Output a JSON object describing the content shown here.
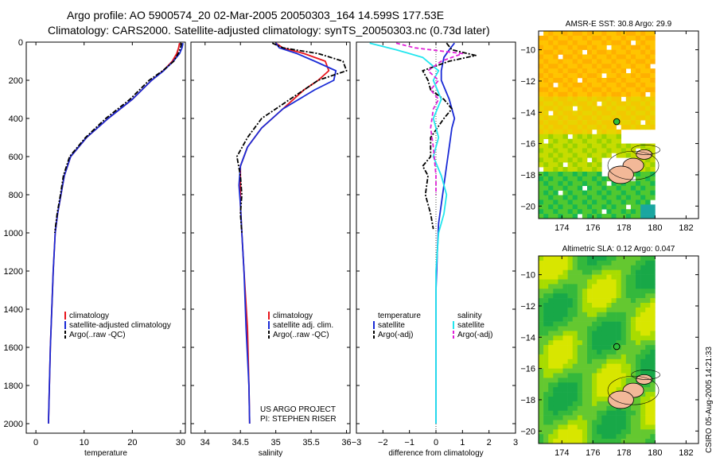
{
  "header": {
    "title_line1": "Argo profile: AO 5900574_20 02-Mar-2005 20050303_164 14.599S 177.53E",
    "title_line2": "Climatology: CARS2000. Satellite-adjusted climatology: synTS_20050303.nc (0.73d later)"
  },
  "credits": {
    "line1": "US ARGO PROJECT",
    "line2": "PI: STEPHEN RISER"
  },
  "timestamp": "CSIRO 05-Aug-2005 14:21:33",
  "colors": {
    "red": "#e8141b",
    "blue": "#1a2bd6",
    "black": "#000000",
    "cyan": "#22e6ee",
    "magenta": "#e020d8"
  },
  "chart_data": [
    {
      "type": "line",
      "xlabel": "temperature",
      "ylabel": "",
      "xlim": [
        -2,
        31
      ],
      "ylim": [
        2050,
        0
      ],
      "xticks": [
        0,
        10,
        20,
        30
      ],
      "yticks": [
        0,
        200,
        400,
        600,
        800,
        1000,
        1200,
        1400,
        1600,
        1800,
        2000
      ],
      "legend_position": "lower-middle",
      "legend": [
        {
          "label": "climatology",
          "color": "red"
        },
        {
          "label": "satellite-adjusted climatology",
          "color": "blue"
        },
        {
          "label": "Argo(..raw -QC)",
          "color": "black"
        }
      ],
      "series": [
        {
          "name": "climatology",
          "color": "red",
          "dash": "solid",
          "points": [
            [
              29.8,
              5
            ],
            [
              29.6,
              30
            ],
            [
              29.2,
              60
            ],
            [
              28.3,
              100
            ],
            [
              26.4,
              150
            ],
            [
              24.0,
              200
            ],
            [
              20.0,
              300
            ],
            [
              15.0,
              400
            ],
            [
              10.5,
              500
            ],
            [
              7.2,
              600
            ],
            [
              5.9,
              700
            ],
            [
              5.2,
              800
            ],
            [
              4.5,
              900
            ],
            [
              4.0,
              1000
            ],
            [
              3.6,
              1200
            ],
            [
              3.3,
              1400
            ],
            [
              3.0,
              1600
            ],
            [
              2.8,
              1800
            ],
            [
              2.6,
              2000
            ]
          ]
        },
        {
          "name": "satellite-adjusted climatology",
          "color": "blue",
          "dash": "solid",
          "points": [
            [
              30.5,
              5
            ],
            [
              30.3,
              30
            ],
            [
              29.8,
              60
            ],
            [
              28.5,
              100
            ],
            [
              26.5,
              150
            ],
            [
              24.0,
              200
            ],
            [
              20.0,
              300
            ],
            [
              15.0,
              400
            ],
            [
              10.5,
              500
            ],
            [
              7.2,
              600
            ],
            [
              5.9,
              700
            ],
            [
              5.2,
              800
            ],
            [
              4.5,
              900
            ],
            [
              4.0,
              1000
            ],
            [
              3.6,
              1200
            ],
            [
              3.3,
              1400
            ],
            [
              3.0,
              1600
            ],
            [
              2.8,
              1800
            ],
            [
              2.6,
              2000
            ]
          ]
        },
        {
          "name": "Argo(..raw -QC)",
          "color": "black",
          "dash": "dashdot",
          "points": [
            [
              30.2,
              5
            ],
            [
              30.0,
              30
            ],
            [
              29.5,
              60
            ],
            [
              28.6,
              100
            ],
            [
              26.3,
              150
            ],
            [
              23.5,
              200
            ],
            [
              19.5,
              300
            ],
            [
              14.5,
              400
            ],
            [
              10.3,
              500
            ],
            [
              7.0,
              600
            ],
            [
              5.7,
              700
            ],
            [
              5.1,
              800
            ],
            [
              4.4,
              900
            ],
            [
              3.9,
              1000
            ]
          ]
        }
      ]
    },
    {
      "type": "line",
      "xlabel": "salinity",
      "ylabel": "",
      "xlim": [
        33.8,
        36.05
      ],
      "ylim": [
        2050,
        0
      ],
      "xticks": [
        34,
        34.5,
        35,
        35.5,
        36
      ],
      "legend_position": "lower-middle",
      "legend": [
        {
          "label": "climatology",
          "color": "red"
        },
        {
          "label": "satellite adj. clim.",
          "color": "blue"
        },
        {
          "label": "Argo(..raw -QC)",
          "color": "black"
        }
      ],
      "series": [
        {
          "name": "climatology",
          "color": "red",
          "dash": "solid",
          "points": [
            [
              35.0,
              5
            ],
            [
              35.1,
              30
            ],
            [
              35.4,
              60
            ],
            [
              35.7,
              100
            ],
            [
              35.75,
              150
            ],
            [
              35.6,
              200
            ],
            [
              35.4,
              250
            ],
            [
              35.1,
              350
            ],
            [
              34.8,
              450
            ],
            [
              34.6,
              550
            ],
            [
              34.5,
              650
            ],
            [
              34.5,
              750
            ],
            [
              34.5,
              850
            ],
            [
              34.52,
              1000
            ],
            [
              34.55,
              1200
            ],
            [
              34.6,
              1500
            ],
            [
              34.62,
              1800
            ],
            [
              34.63,
              2000
            ]
          ]
        },
        {
          "name": "satellite adj. clim.",
          "color": "blue",
          "dash": "solid",
          "points": [
            [
              35.0,
              5
            ],
            [
              35.05,
              30
            ],
            [
              35.3,
              60
            ],
            [
              35.55,
              100
            ],
            [
              35.85,
              150
            ],
            [
              35.82,
              200
            ],
            [
              35.55,
              250
            ],
            [
              35.1,
              350
            ],
            [
              34.8,
              450
            ],
            [
              34.6,
              550
            ],
            [
              34.5,
              650
            ],
            [
              34.48,
              750
            ],
            [
              34.5,
              850
            ],
            [
              34.52,
              1000
            ],
            [
              34.55,
              1200
            ],
            [
              34.58,
              1500
            ],
            [
              34.62,
              1800
            ],
            [
              34.63,
              2000
            ]
          ]
        },
        {
          "name": "Argo(..raw -QC)",
          "color": "black",
          "dash": "dashdot",
          "points": [
            [
              34.95,
              5
            ],
            [
              35.1,
              30
            ],
            [
              35.6,
              60
            ],
            [
              35.95,
              100
            ],
            [
              36.0,
              150
            ],
            [
              35.6,
              200
            ],
            [
              35.2,
              300
            ],
            [
              34.8,
              400
            ],
            [
              34.6,
              500
            ],
            [
              34.45,
              600
            ],
            [
              34.5,
              700
            ],
            [
              34.52,
              800
            ],
            [
              34.5,
              900
            ],
            [
              34.52,
              1000
            ]
          ]
        }
      ]
    },
    {
      "type": "line",
      "xlabel": "difference from climatology",
      "ylabel": "",
      "xlim": [
        -3,
        3
      ],
      "ylim": [
        2050,
        0
      ],
      "xticks": [
        -3,
        -2,
        -1,
        0,
        1,
        2,
        3
      ],
      "legend_position": "lower-middle",
      "legend": [
        {
          "label": "temperature",
          "color": "none"
        },
        {
          "label": "satellite",
          "color": "blue"
        },
        {
          "label": "Argo(-adj)",
          "color": "black"
        },
        {
          "label": "salinity",
          "color": "none"
        },
        {
          "label": "satellite",
          "color": "cyan"
        },
        {
          "label": "Argo(-adj)",
          "color": "magenta"
        }
      ],
      "series": [
        {
          "name": "temperature satellite",
          "color": "blue",
          "dash": "solid",
          "points": [
            [
              0.7,
              5
            ],
            [
              0.5,
              40
            ],
            [
              0.3,
              80
            ],
            [
              0.2,
              150
            ],
            [
              0.2,
              200
            ],
            [
              0.5,
              300
            ],
            [
              0.7,
              400
            ],
            [
              0.6,
              450
            ],
            [
              0.5,
              550
            ],
            [
              0.4,
              650
            ],
            [
              0.3,
              750
            ],
            [
              0.2,
              850
            ],
            [
              0.1,
              950
            ],
            [
              0.05,
              1100
            ],
            [
              0.0,
              1300
            ],
            [
              0.0,
              2000
            ]
          ]
        },
        {
          "name": "temperature Argo",
          "color": "black",
          "dash": "dashdot",
          "points": [
            [
              0.4,
              5
            ],
            [
              0.6,
              40
            ],
            [
              1.5,
              70
            ],
            [
              0.5,
              100
            ],
            [
              -0.5,
              150
            ],
            [
              -0.3,
              200
            ],
            [
              -0.2,
              250
            ],
            [
              0.3,
              300
            ],
            [
              0.6,
              350
            ],
            [
              0.3,
              400
            ],
            [
              -0.2,
              500
            ],
            [
              -0.2,
              600
            ],
            [
              -0.5,
              650
            ],
            [
              -0.3,
              700
            ],
            [
              -0.4,
              800
            ],
            [
              -0.2,
              900
            ],
            [
              -0.1,
              980
            ]
          ]
        },
        {
          "name": "salinity satellite",
          "color": "cyan",
          "dash": "solid",
          "points": [
            [
              -2.5,
              5
            ],
            [
              -1.5,
              40
            ],
            [
              -0.5,
              80
            ],
            [
              0.1,
              150
            ],
            [
              -0.1,
              200
            ],
            [
              0.2,
              300
            ],
            [
              -0.1,
              400
            ],
            [
              0.1,
              500
            ],
            [
              -0.1,
              600
            ],
            [
              0.2,
              700
            ],
            [
              0.4,
              800
            ],
            [
              0.3,
              900
            ],
            [
              0.1,
              1000
            ],
            [
              0.0,
              1200
            ],
            [
              0.0,
              2000
            ]
          ]
        },
        {
          "name": "salinity Argo",
          "color": "magenta",
          "dash": "dashed",
          "points": [
            [
              -1.5,
              5
            ],
            [
              -0.8,
              30
            ],
            [
              1.0,
              60
            ],
            [
              0.2,
              100
            ],
            [
              -0.3,
              150
            ],
            [
              0.1,
              200
            ],
            [
              -0.2,
              250
            ],
            [
              0.1,
              300
            ],
            [
              -0.1,
              350
            ],
            [
              -0.2,
              450
            ],
            [
              -0.1,
              550
            ],
            [
              0.0,
              700
            ],
            [
              0.0,
              800
            ]
          ]
        }
      ]
    },
    {
      "type": "heatmap",
      "title": "AMSR-E SST: 30.8 Argo: 29.9",
      "xlabel": "",
      "ylabel": "",
      "xlim": [
        172.5,
        182.8
      ],
      "ylim": [
        -20.8,
        -8.8
      ],
      "xticks": [
        174,
        176,
        178,
        180,
        182
      ],
      "yticks": [
        -10,
        -12,
        -14,
        -16,
        -18,
        -20
      ],
      "marker": {
        "lon": 177.53,
        "lat": -14.599
      },
      "data_extent_lon": [
        172.5,
        180
      ]
    },
    {
      "type": "heatmap",
      "title": "Altimetric SLA: 0.12 Argo: 0.047",
      "xlabel": "",
      "ylabel": "",
      "xlim": [
        172.5,
        182.8
      ],
      "ylim": [
        -20.8,
        -8.8
      ],
      "xticks": [
        174,
        176,
        178,
        180,
        182
      ],
      "yticks": [
        -10,
        -12,
        -14,
        -16,
        -18,
        -20
      ],
      "marker": {
        "lon": 177.53,
        "lat": -14.599
      },
      "data_extent_lon": [
        172.5,
        180
      ]
    }
  ]
}
